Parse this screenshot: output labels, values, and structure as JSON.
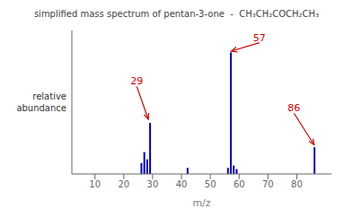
{
  "chart_data": {
    "type": "bar",
    "title": "simplified mass spectrum of pentan-3-one  -  CH₃CH₂COCH₂CH₃",
    "xlabel": "m/z",
    "ylabel": "relative\nabundance",
    "x": [
      26,
      27,
      28,
      29,
      42,
      56,
      57,
      58,
      59,
      86
    ],
    "values": [
      0.09,
      0.18,
      0.12,
      0.42,
      0.05,
      0.05,
      1.0,
      0.07,
      0.04,
      0.22
    ],
    "color": "#0000bb",
    "xlim": [
      2,
      92
    ],
    "xticks": [
      10,
      20,
      30,
      40,
      50,
      60,
      70,
      80
    ],
    "ylim": [
      0,
      1.18
    ],
    "yticks": [],
    "tick_labels": "x",
    "annotations": [
      {
        "text": "29",
        "x": 28.5,
        "y": 0.45,
        "label_x": 24.5,
        "label_y": 0.72,
        "color": "#cc0000"
      },
      {
        "text": "57",
        "x": 57.3,
        "y": 1.01,
        "label_x": 67,
        "label_y": 1.08,
        "color": "#cc0000"
      },
      {
        "text": "86",
        "x": 86,
        "y": 0.24,
        "label_x": 79,
        "label_y": 0.5,
        "color": "#cc0000"
      }
    ]
  }
}
